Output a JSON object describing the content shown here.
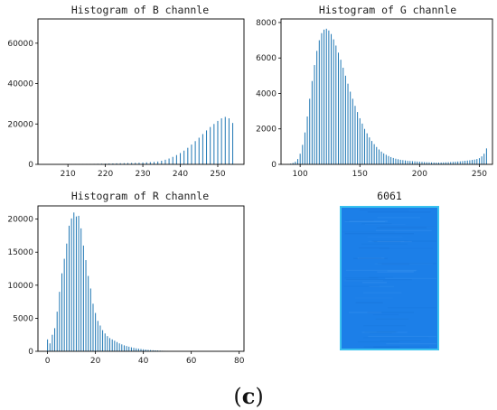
{
  "caption": {
    "open": "(",
    "letter": "c",
    "close": ")"
  },
  "image_panel": {
    "title": "6061",
    "fill_color": "#1c7fe8",
    "border_color": "#39c2ef"
  },
  "chart_data": [
    {
      "id": "b",
      "type": "bar",
      "title": "Histogram of B channle",
      "color": "#1f77b4",
      "xlim": [
        202,
        257
      ],
      "ylim": [
        0,
        72000
      ],
      "xticks": [
        210,
        220,
        230,
        240,
        250
      ],
      "yticks": [
        0,
        20000,
        40000,
        60000
      ],
      "x": [
        205,
        206,
        207,
        208,
        209,
        210,
        211,
        212,
        213,
        214,
        215,
        216,
        217,
        218,
        219,
        220,
        221,
        222,
        223,
        224,
        225,
        226,
        227,
        228,
        229,
        230,
        231,
        232,
        233,
        234,
        235,
        236,
        237,
        238,
        239,
        240,
        241,
        242,
        243,
        244,
        245,
        246,
        247,
        248,
        249,
        250,
        251,
        252,
        253,
        254
      ],
      "values": [
        10,
        20,
        30,
        40,
        50,
        60,
        80,
        100,
        120,
        150,
        180,
        200,
        240,
        280,
        320,
        360,
        400,
        450,
        500,
        550,
        600,
        650,
        700,
        750,
        800,
        900,
        1000,
        1100,
        1200,
        1400,
        1800,
        2300,
        2900,
        3700,
        4600,
        5600,
        6800,
        8200,
        9800,
        11500,
        13200,
        15000,
        16800,
        18500,
        20000,
        21500,
        22800,
        23500,
        22800,
        20500
      ]
    },
    {
      "id": "g",
      "type": "bar",
      "title": "Histogram of G channle",
      "color": "#1f77b4",
      "xlim": [
        84,
        261
      ],
      "ylim": [
        0,
        8200
      ],
      "xticks": [
        100,
        150,
        200,
        250
      ],
      "yticks": [
        0,
        2000,
        4000,
        6000,
        8000
      ],
      "x": [
        90,
        92,
        94,
        96,
        98,
        100,
        102,
        104,
        106,
        108,
        110,
        112,
        114,
        116,
        118,
        120,
        122,
        124,
        126,
        128,
        130,
        132,
        134,
        136,
        138,
        140,
        142,
        144,
        146,
        148,
        150,
        152,
        154,
        156,
        158,
        160,
        162,
        164,
        166,
        168,
        170,
        172,
        174,
        176,
        178,
        180,
        182,
        184,
        186,
        188,
        190,
        192,
        194,
        196,
        198,
        200,
        202,
        204,
        206,
        208,
        210,
        212,
        214,
        216,
        218,
        220,
        222,
        224,
        226,
        228,
        230,
        232,
        234,
        236,
        238,
        240,
        242,
        244,
        246,
        248,
        250,
        252,
        254,
        256
      ],
      "values": [
        20,
        40,
        80,
        150,
        300,
        600,
        1100,
        1800,
        2700,
        3700,
        4700,
        5600,
        6400,
        7000,
        7400,
        7600,
        7650,
        7550,
        7350,
        7050,
        6700,
        6300,
        5900,
        5450,
        5000,
        4550,
        4100,
        3700,
        3300,
        2950,
        2600,
        2300,
        2000,
        1750,
        1520,
        1320,
        1140,
        980,
        840,
        720,
        620,
        540,
        470,
        410,
        360,
        320,
        290,
        260,
        240,
        220,
        200,
        190,
        180,
        170,
        160,
        150,
        140,
        130,
        120,
        115,
        110,
        105,
        100,
        100,
        105,
        110,
        115,
        120,
        130,
        140,
        150,
        160,
        170,
        185,
        200,
        215,
        230,
        250,
        270,
        300,
        350,
        450,
        600,
        900
      ]
    },
    {
      "id": "r",
      "type": "bar",
      "title": "Histogram of R channle",
      "color": "#1f77b4",
      "xlim": [
        -4,
        82
      ],
      "ylim": [
        0,
        22000
      ],
      "xticks": [
        0,
        20,
        40,
        60,
        80
      ],
      "yticks": [
        0,
        5000,
        10000,
        15000,
        20000
      ],
      "x": [
        0,
        1,
        2,
        3,
        4,
        5,
        6,
        7,
        8,
        9,
        10,
        11,
        12,
        13,
        14,
        15,
        16,
        17,
        18,
        19,
        20,
        21,
        22,
        23,
        24,
        25,
        26,
        27,
        28,
        29,
        30,
        31,
        32,
        33,
        34,
        35,
        36,
        37,
        38,
        39,
        40,
        41,
        42,
        43,
        44,
        45,
        46,
        47,
        48,
        49,
        50
      ],
      "values": [
        1800,
        1200,
        2500,
        3500,
        6000,
        9000,
        11800,
        14000,
        16300,
        19000,
        20100,
        21000,
        20400,
        20500,
        18600,
        16000,
        13800,
        11400,
        9500,
        7200,
        5800,
        4600,
        3900,
        3200,
        2700,
        2300,
        2000,
        1800,
        1600,
        1400,
        1200,
        1050,
        900,
        800,
        700,
        600,
        520,
        450,
        400,
        350,
        300,
        260,
        220,
        190,
        160,
        140,
        120,
        100,
        80,
        60,
        40
      ]
    }
  ]
}
